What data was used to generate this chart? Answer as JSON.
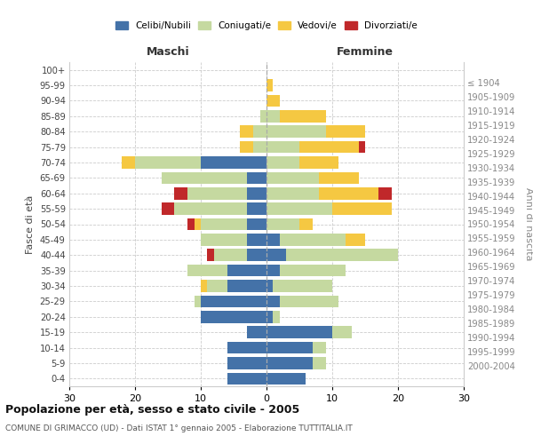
{
  "age_groups": [
    "0-4",
    "5-9",
    "10-14",
    "15-19",
    "20-24",
    "25-29",
    "30-34",
    "35-39",
    "40-44",
    "45-49",
    "50-54",
    "55-59",
    "60-64",
    "65-69",
    "70-74",
    "75-79",
    "80-84",
    "85-89",
    "90-94",
    "95-99",
    "100+"
  ],
  "birth_years": [
    "2000-2004",
    "1995-1999",
    "1990-1994",
    "1985-1989",
    "1980-1984",
    "1975-1979",
    "1970-1974",
    "1965-1969",
    "1960-1964",
    "1955-1959",
    "1950-1954",
    "1945-1949",
    "1940-1944",
    "1935-1939",
    "1930-1934",
    "1925-1929",
    "1920-1924",
    "1915-1919",
    "1910-1914",
    "1905-1909",
    "≤ 1904"
  ],
  "male": {
    "celibi": [
      6,
      6,
      6,
      3,
      10,
      10,
      6,
      6,
      3,
      3,
      3,
      3,
      3,
      3,
      10,
      0,
      0,
      0,
      0,
      0,
      0
    ],
    "coniugati": [
      0,
      0,
      0,
      0,
      0,
      1,
      3,
      6,
      5,
      7,
      7,
      11,
      9,
      13,
      10,
      2,
      2,
      1,
      0,
      0,
      0
    ],
    "vedovi": [
      0,
      0,
      0,
      0,
      0,
      0,
      1,
      0,
      0,
      0,
      1,
      0,
      0,
      0,
      2,
      2,
      2,
      0,
      0,
      0,
      0
    ],
    "divorziati": [
      0,
      0,
      0,
      0,
      0,
      0,
      0,
      0,
      1,
      0,
      1,
      2,
      2,
      0,
      0,
      0,
      0,
      0,
      0,
      0,
      0
    ]
  },
  "female": {
    "nubili": [
      6,
      7,
      7,
      10,
      1,
      2,
      1,
      2,
      3,
      2,
      0,
      0,
      0,
      0,
      0,
      0,
      0,
      0,
      0,
      0,
      0
    ],
    "coniugate": [
      0,
      2,
      2,
      3,
      1,
      9,
      9,
      10,
      17,
      10,
      5,
      10,
      8,
      8,
      5,
      5,
      9,
      2,
      0,
      0,
      0
    ],
    "vedove": [
      0,
      0,
      0,
      0,
      0,
      0,
      0,
      0,
      0,
      3,
      2,
      9,
      9,
      6,
      6,
      9,
      6,
      7,
      2,
      1,
      0
    ],
    "divorziate": [
      0,
      0,
      0,
      0,
      0,
      0,
      0,
      0,
      0,
      0,
      0,
      0,
      2,
      0,
      0,
      1,
      0,
      0,
      0,
      0,
      0
    ]
  },
  "colors": {
    "celibi": "#4472a8",
    "coniugati": "#c5d9a0",
    "vedovi": "#f5c842",
    "divorziati": "#c0282a"
  },
  "xlim": 30,
  "title": "Popolazione per età, sesso e stato civile - 2005",
  "subtitle": "COMUNE DI GRIMACCO (UD) - Dati ISTAT 1° gennaio 2005 - Elaborazione TUTTITALIA.IT",
  "ylabel_left": "Fasce di età",
  "ylabel_right": "Anni di nascita",
  "xlabel_male": "Maschi",
  "xlabel_female": "Femmine"
}
